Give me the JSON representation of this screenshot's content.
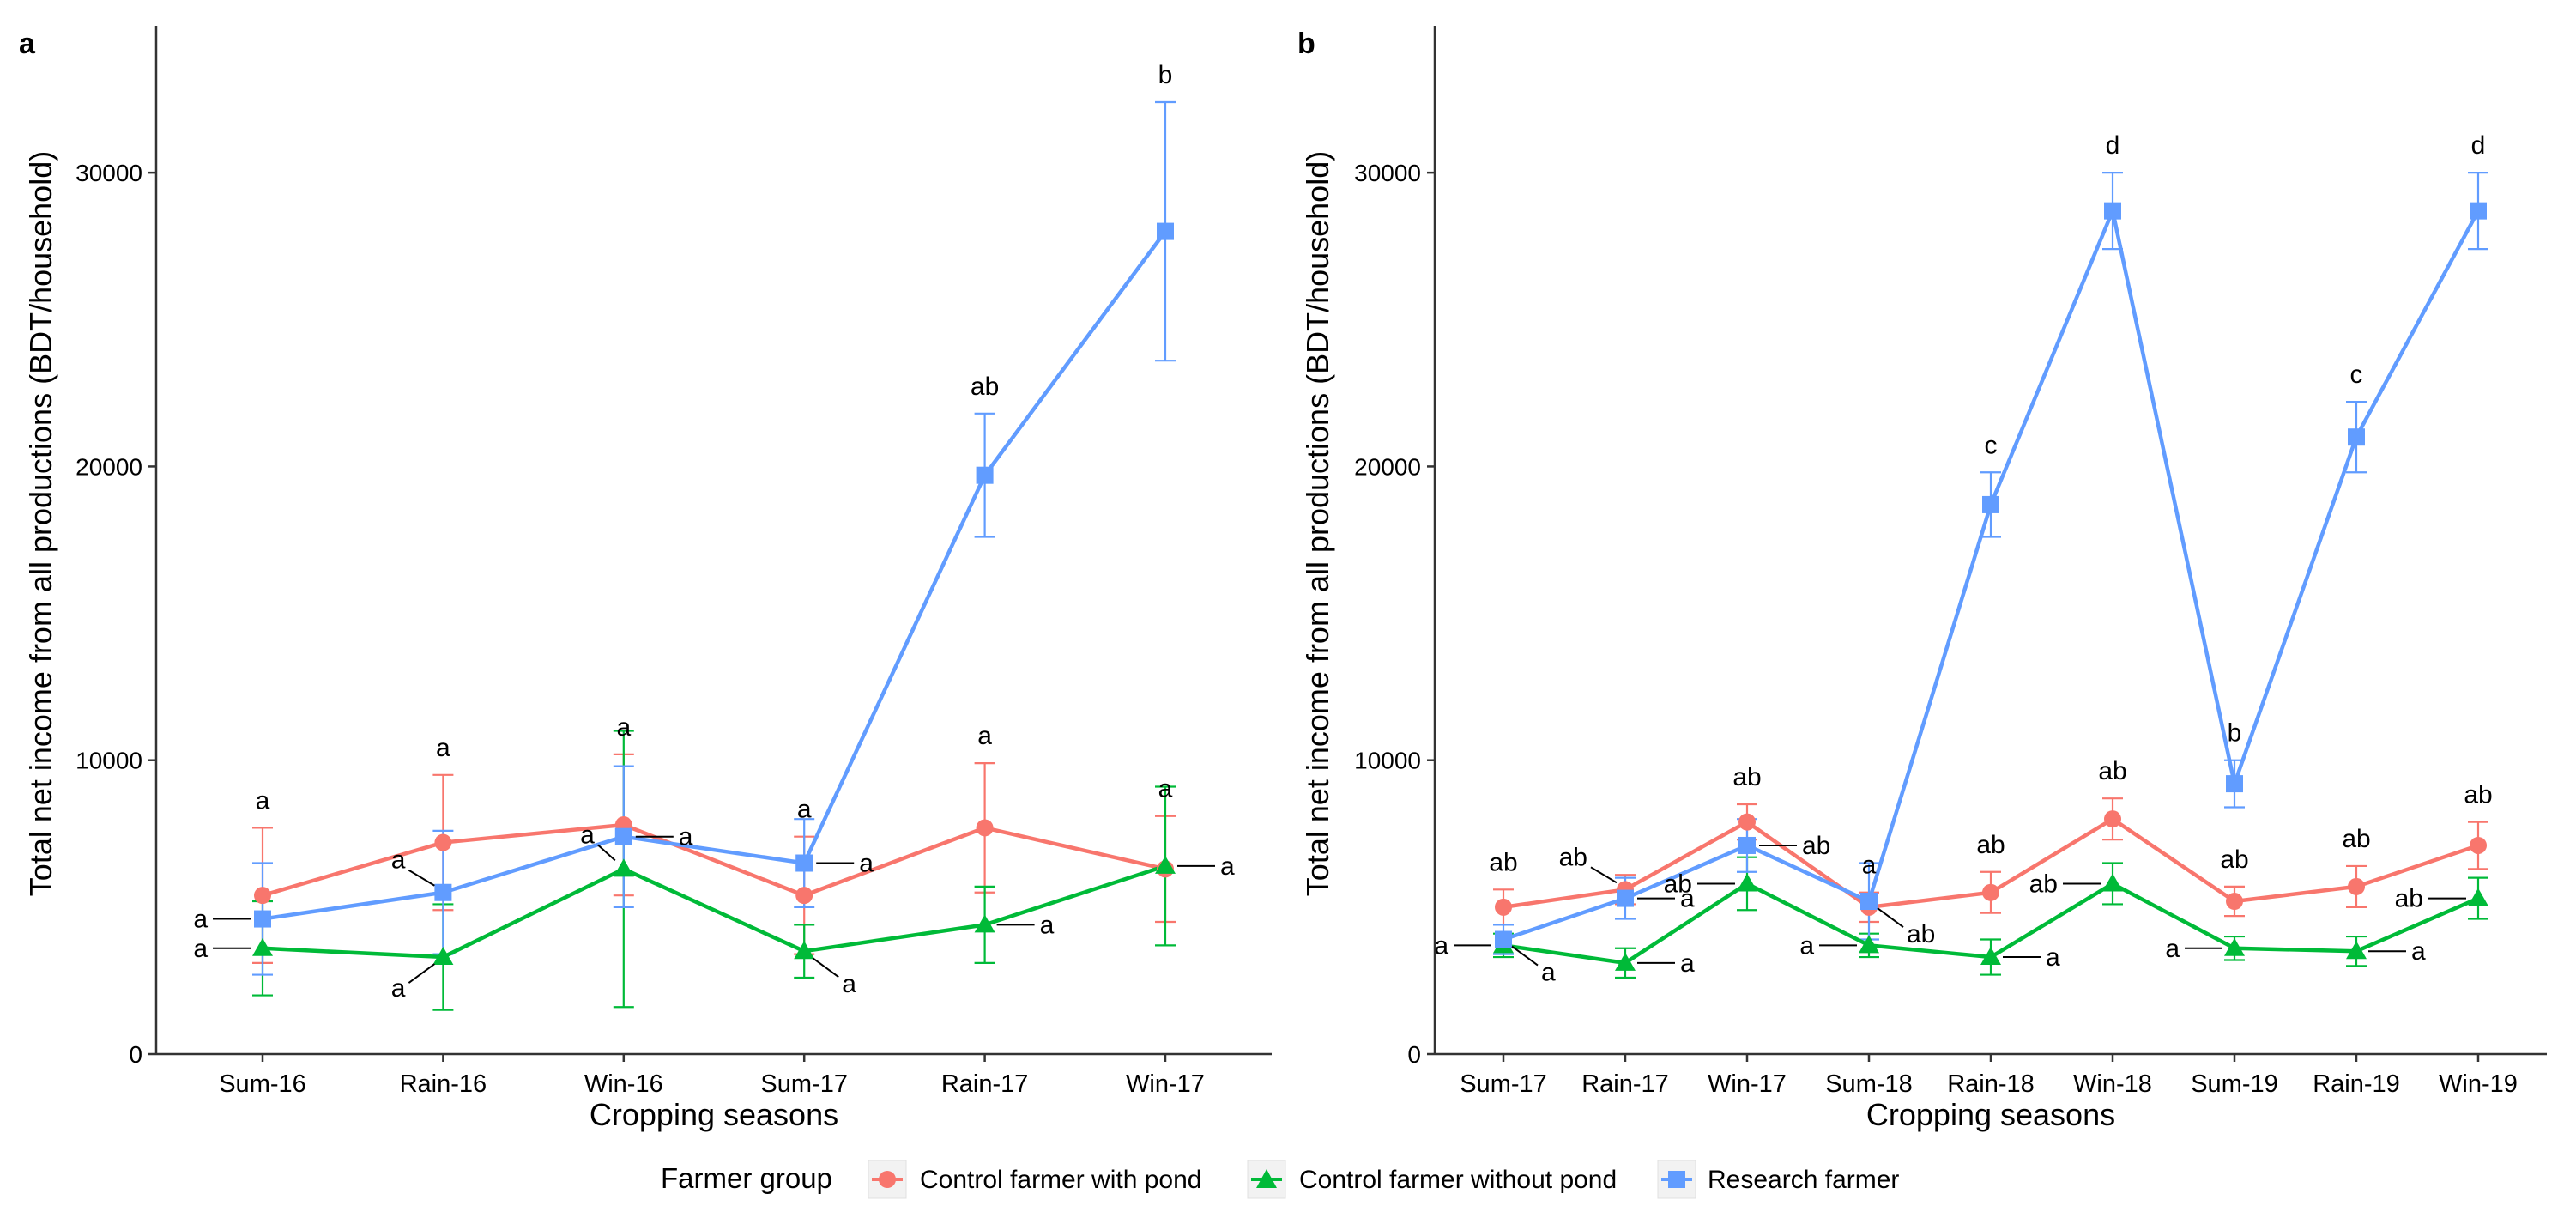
{
  "figure": {
    "legend_title": "Farmer group",
    "legend_placement": "bottom",
    "groups": [
      {
        "name": "Control farmer with pond",
        "color": "#F8766D",
        "marker": "circle"
      },
      {
        "name": "Control farmer without pond",
        "color": "#00BA38",
        "marker": "triangle"
      },
      {
        "name": "Research farmer",
        "color": "#619CFF",
        "marker": "square"
      }
    ]
  },
  "chart_data": [
    {
      "type": "line",
      "panel_label": "a",
      "title": "",
      "xlabel": "Cropping seasons",
      "ylabel": "Total net income from all productions (BDT/household)",
      "categories": [
        "Sum-16",
        "Rain-16",
        "Win-16",
        "Sum-17",
        "Rain-17",
        "Win-17"
      ],
      "ylim": [
        0,
        35000
      ],
      "yticks": [
        0,
        10000,
        20000,
        30000
      ],
      "yticklabels": [
        "0",
        "10000",
        "20000",
        "30000"
      ],
      "grid": false,
      "series": [
        {
          "name": "Control farmer with pond",
          "values": [
            5400,
            7200,
            7800,
            5400,
            7700,
            6300
          ],
          "errors": [
            2300,
            2300,
            2400,
            2000,
            2200,
            1800
          ],
          "labels": [
            "a",
            "a",
            "a",
            "a",
            "a",
            "a"
          ]
        },
        {
          "name": "Control farmer without pond",
          "values": [
            3600,
            3300,
            6300,
            3500,
            4400,
            6400
          ],
          "errors": [
            1600,
            1800,
            4700,
            900,
            1300,
            2700
          ],
          "labels": [
            "a",
            "a",
            "a",
            "a",
            "a",
            "a"
          ]
        },
        {
          "name": "Research farmer",
          "values": [
            4600,
            5500,
            7400,
            6500,
            19700,
            28000
          ],
          "errors": [
            1900,
            2100,
            2400,
            1500,
            2100,
            4400
          ],
          "labels": [
            "a",
            "a",
            "a",
            "a",
            "ab",
            "b"
          ]
        }
      ]
    },
    {
      "type": "line",
      "panel_label": "b",
      "title": "",
      "xlabel": "Cropping seasons",
      "ylabel": "Total net income from all productions (BDT/household)",
      "categories": [
        "Sum-17",
        "Rain-17",
        "Win-17",
        "Sum-18",
        "Rain-18",
        "Win-18",
        "Sum-19",
        "Rain-19",
        "Win-19"
      ],
      "ylim": [
        0,
        35000
      ],
      "yticks": [
        0,
        10000,
        20000,
        30000
      ],
      "yticklabels": [
        "0",
        "10000",
        "20000",
        "30000"
      ],
      "grid": false,
      "series": [
        {
          "name": "Control farmer with pond",
          "values": [
            5000,
            5600,
            7900,
            5000,
            5500,
            8000,
            5200,
            5700,
            7100
          ],
          "errors": [
            600,
            500,
            600,
            500,
            700,
            700,
            500,
            700,
            800
          ],
          "labels": [
            "ab",
            "ab",
            "ab",
            "a",
            "ab",
            "ab",
            "ab",
            "ab",
            "ab"
          ]
        },
        {
          "name": "Control farmer without pond",
          "values": [
            3700,
            3100,
            5800,
            3700,
            3300,
            5800,
            3600,
            3500,
            5300
          ],
          "errors": [
            400,
            500,
            900,
            400,
            600,
            700,
            400,
            500,
            700
          ],
          "labels": [
            "a",
            "a",
            "ab",
            "a",
            "a",
            "ab",
            "a",
            "a",
            "ab"
          ]
        },
        {
          "name": "Research farmer",
          "values": [
            3900,
            5300,
            7100,
            5200,
            18700,
            28700,
            9200,
            21000,
            28700
          ],
          "errors": [
            500,
            700,
            900,
            1300,
            1100,
            1300,
            800,
            1200,
            1300
          ],
          "labels": [
            "a",
            "a",
            "ab",
            "ab",
            "c",
            "d",
            "b",
            "c",
            "d"
          ]
        }
      ]
    }
  ]
}
